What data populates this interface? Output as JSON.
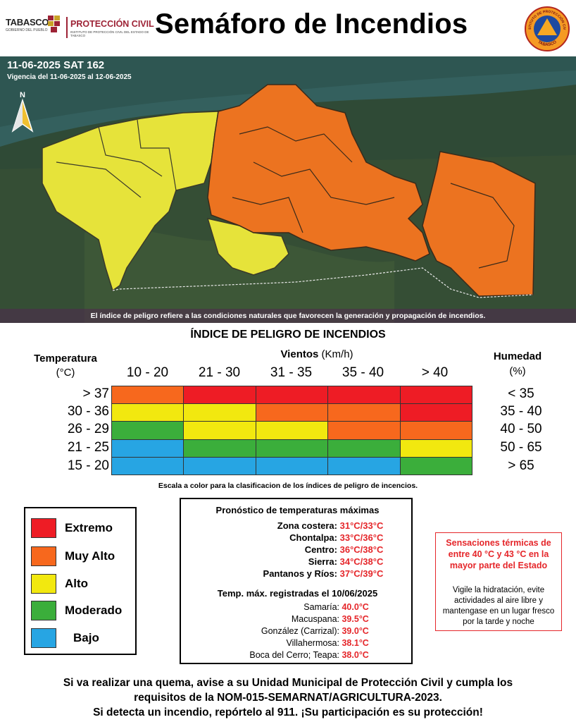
{
  "header": {
    "logo_tabasco": "TABASCO",
    "logo_tabasco_sub": "GOBIERNO DEL PUEBLO",
    "logo_pc": "PROTECCIÓN CIVIL",
    "logo_pc_sub": "INSTITUTO DE PROTECCIÓN CIVIL DEL ESTADO DE TABASCO",
    "title": "Semáforo de Incendios",
    "seal_top": "INSTITUTO DE PROTECCIÓN CIVIL",
    "seal_bottom": "TABASCO"
  },
  "map": {
    "date_line": "11-06-2025 SAT 162",
    "validity": "Vigencia del 11-06-2025 al 12-06-2025",
    "north": "N",
    "caption": "El índice de peligro refiere a las condiciones naturales que favorecen la generación y propagación de incendios."
  },
  "index": {
    "title": "ÍNDICE DE PELIGRO DE INCENDIOS",
    "vientos_bold": "Vientos",
    "vientos_unit": " (Km/h)",
    "temp_header": "Temperatura",
    "temp_unit": "(°C)",
    "hum_header": "Humedad",
    "hum_unit": "(%)",
    "wind_ranges": [
      "10 - 20",
      "21 - 30",
      "31 - 35",
      "35 - 40",
      "> 40"
    ],
    "temp_ranges": [
      "> 37",
      "30 - 36",
      "26 - 29",
      "21 - 25",
      "15 - 20"
    ],
    "hum_ranges": [
      "< 35",
      "35 - 40",
      "40 - 50",
      "50 - 65",
      "> 65"
    ],
    "matrix": [
      [
        "muy_alto",
        "extremo",
        "extremo",
        "extremo",
        "extremo"
      ],
      [
        "alto",
        "alto",
        "muy_alto",
        "muy_alto",
        "extremo"
      ],
      [
        "moderado",
        "alto",
        "alto",
        "muy_alto",
        "muy_alto"
      ],
      [
        "bajo",
        "moderado",
        "moderado",
        "moderado",
        "alto"
      ],
      [
        "bajo",
        "bajo",
        "bajo",
        "bajo",
        "moderado"
      ]
    ],
    "scale_note": "Escala a color para la clasificacion de los índices de peligro de incencios."
  },
  "colors": {
    "extremo": "#ee1c25",
    "muy_alto": "#f7681d",
    "alto": "#f2e80f",
    "moderado": "#3bae3b",
    "bajo": "#27a5e3",
    "accent_red": "#e5262a",
    "brand": "#9d2235"
  },
  "legend": [
    {
      "key": "extremo",
      "label": "Extremo"
    },
    {
      "key": "muy_alto",
      "label": "Muy Alto"
    },
    {
      "key": "alto",
      "label": "Alto"
    },
    {
      "key": "moderado",
      "label": "Moderado"
    },
    {
      "key": "bajo",
      "label": "Bajo"
    }
  ],
  "forecast": {
    "title": "Pronóstico de temperaturas máximas",
    "rows": [
      {
        "zone": "Zona costera:",
        "value": "31°C/33°C"
      },
      {
        "zone": "Chontalpa:",
        "value": "33°C/36°C"
      },
      {
        "zone": "Centro:",
        "value": "36°C/38°C"
      },
      {
        "zone": "Sierra:",
        "value": "34°C/38°C"
      },
      {
        "zone": "Pantanos y Ríos:",
        "value": "37°C/39°C"
      }
    ],
    "recorded_title": "Temp. máx. registradas el 10/06/2025",
    "recorded": [
      {
        "place": "Samaría:",
        "value": "40.0°C"
      },
      {
        "place": "Macuspana:",
        "value": "39.5°C"
      },
      {
        "place": "González (Carrizal):",
        "value": "39.0°C"
      },
      {
        "place": "Villahermosa:",
        "value": "38.1°C"
      },
      {
        "place": "Boca del Cerro; Teapa:",
        "value": "38.0°C"
      }
    ]
  },
  "sensaciones": {
    "title": "Sensaciones térmicas de entre 40 °C y 43 °C en la mayor parte del Estado",
    "body": "Vigile la hidratación, evite actividades al aire libre y mantengase en un lugar fresco por la tarde y noche"
  },
  "footer": {
    "line1": "Si va realizar una quema, avise a su Unidad Municipal de Protección Civil y cumpla los",
    "line2": "requisitos de la NOM-015-SEMARNAT/AGRICULTURA-2023.",
    "line3": "Si detecta un incendio, repórtelo al 911. ¡Su participación es su protección!"
  }
}
